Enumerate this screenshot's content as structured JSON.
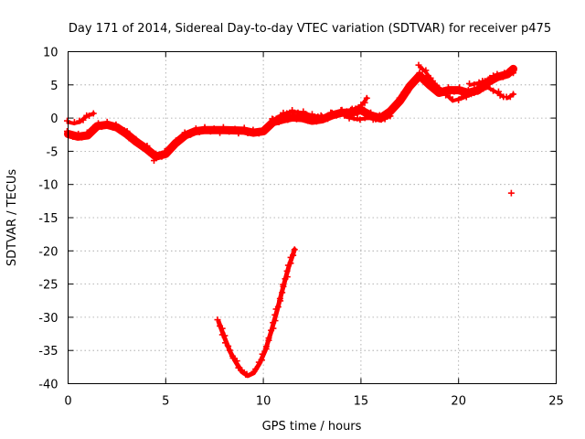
{
  "chart_data": {
    "type": "scatter",
    "title": "Day 171 of 2014, Sidereal Day-to-day VTEC variation (SDTVAR) for receiver p475",
    "xlabel": "GPS time / hours",
    "ylabel": "SDTVAR / TECUs",
    "xlim": [
      0,
      25
    ],
    "ylim": [
      -40,
      10
    ],
    "xticks": [
      0,
      5,
      10,
      15,
      20,
      25
    ],
    "yticks": [
      -40,
      -35,
      -30,
      -25,
      -20,
      -15,
      -10,
      -5,
      0,
      5,
      10
    ],
    "grid": true,
    "marker": "+",
    "color": "#ff0000",
    "series": [
      {
        "values": [
          [
            0.0,
            -2.4
          ],
          [
            0.5,
            -2.8
          ],
          [
            1.0,
            -2.6
          ],
          [
            1.5,
            -1.2
          ],
          [
            2.0,
            -1.0
          ],
          [
            2.5,
            -1.4
          ],
          [
            3.0,
            -2.4
          ],
          [
            3.5,
            -3.6
          ],
          [
            4.0,
            -4.6
          ],
          [
            4.5,
            -5.8
          ],
          [
            5.0,
            -5.4
          ],
          [
            5.5,
            -3.8
          ],
          [
            6.0,
            -2.6
          ],
          [
            6.5,
            -2.0
          ],
          [
            7.0,
            -1.8
          ],
          [
            8.0,
            -1.8
          ],
          [
            9.0,
            -1.9
          ],
          [
            9.5,
            -2.2
          ],
          [
            10.0,
            -2.0
          ],
          [
            10.5,
            -0.6
          ],
          [
            11.0,
            -0.2
          ],
          [
            11.5,
            0.1
          ],
          [
            12.0,
            0.0
          ],
          [
            12.5,
            -0.4
          ],
          [
            13.0,
            -0.2
          ],
          [
            13.5,
            0.4
          ],
          [
            14.0,
            0.8
          ],
          [
            14.5,
            0.8
          ],
          [
            15.0,
            1.2
          ],
          [
            15.5,
            0.4
          ],
          [
            16.0,
            0.0
          ],
          [
            16.5,
            1.0
          ],
          [
            17.0,
            2.6
          ],
          [
            17.5,
            4.8
          ],
          [
            18.0,
            6.4
          ],
          [
            18.5,
            5.0
          ],
          [
            19.0,
            3.8
          ],
          [
            19.5,
            4.2
          ],
          [
            20.0,
            4.2
          ],
          [
            20.5,
            3.8
          ],
          [
            21.0,
            4.2
          ],
          [
            21.5,
            5.4
          ],
          [
            22.0,
            6.2
          ],
          [
            22.5,
            6.6
          ],
          [
            22.8,
            7.4
          ]
        ],
        "width": 9
      },
      {
        "values": [
          [
            0.0,
            -0.6
          ],
          [
            0.3,
            -0.8
          ],
          [
            0.6,
            -0.6
          ],
          [
            0.9,
            0.2
          ],
          [
            1.3,
            0.7
          ]
        ],
        "width": 4
      },
      {
        "values": [
          [
            10.5,
            -0.3
          ],
          [
            11.0,
            0.6
          ],
          [
            11.5,
            1.0
          ],
          [
            12.0,
            0.8
          ],
          [
            12.5,
            0.4
          ],
          [
            13.0,
            0.2
          ],
          [
            13.5,
            0.6
          ],
          [
            14.0,
            1.0
          ],
          [
            14.5,
            1.2
          ],
          [
            15.0,
            1.8
          ],
          [
            15.3,
            3.0
          ]
        ],
        "width": 4
      },
      {
        "values": [
          [
            14.2,
            0.2
          ],
          [
            14.8,
            -0.2
          ],
          [
            15.4,
            0.0
          ],
          [
            16.0,
            -0.4
          ],
          [
            16.5,
            0.3
          ]
        ],
        "width": 4
      },
      {
        "values": [
          [
            18.0,
            7.8
          ],
          [
            18.3,
            7.0
          ],
          [
            18.7,
            5.4
          ],
          [
            19.2,
            4.0
          ],
          [
            19.7,
            2.6
          ],
          [
            20.2,
            3.0
          ],
          [
            20.8,
            3.8
          ],
          [
            21.5,
            4.6
          ],
          [
            22.0,
            3.8
          ],
          [
            22.3,
            3.2
          ]
        ],
        "width": 4
      },
      {
        "values": [
          [
            20.6,
            5.0
          ],
          [
            21.2,
            5.4
          ],
          [
            21.8,
            6.2
          ],
          [
            22.3,
            6.6
          ],
          [
            22.8,
            6.8
          ]
        ],
        "width": 4
      },
      {
        "values": [
          [
            7.7,
            -30.6
          ],
          [
            8.0,
            -33.0
          ],
          [
            8.3,
            -35.2
          ],
          [
            8.6,
            -36.8
          ],
          [
            8.9,
            -38.2
          ],
          [
            9.2,
            -38.8
          ],
          [
            9.5,
            -38.4
          ],
          [
            9.8,
            -37.0
          ],
          [
            10.1,
            -35.0
          ],
          [
            10.4,
            -32.2
          ],
          [
            10.7,
            -29.0
          ],
          [
            11.0,
            -25.6
          ],
          [
            11.3,
            -22.4
          ],
          [
            11.6,
            -19.8
          ]
        ],
        "width": 5
      },
      {
        "values": [
          [
            22.5,
            3.0
          ],
          [
            22.8,
            3.6
          ]
        ],
        "width": 4
      }
    ],
    "isolated_points": [
      [
        6.1,
        -2.4
      ],
      [
        4.4,
        -6.4
      ],
      [
        22.7,
        -11.3
      ],
      [
        7.0,
        -1.6
      ]
    ]
  }
}
